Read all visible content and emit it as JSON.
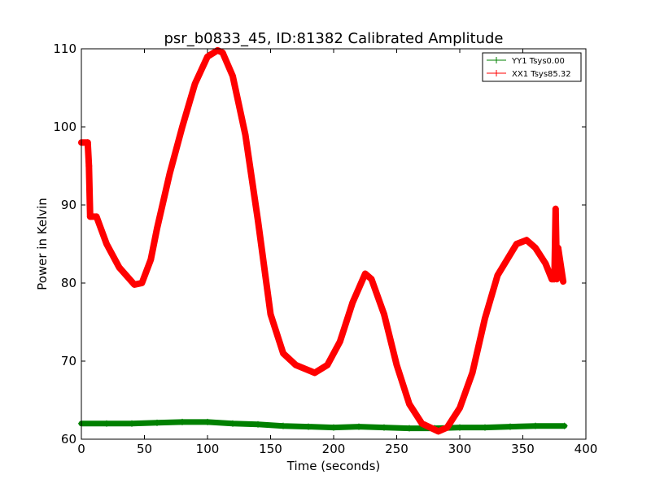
{
  "chart_data": {
    "type": "line",
    "title": "psr_b0833_45, ID:81382 Calibrated Amplitude",
    "xlabel": "Time (seconds)",
    "ylabel": "Power in Kelvin",
    "xlim": [
      0,
      400
    ],
    "ylim": [
      60,
      110
    ],
    "xticks": [
      0,
      50,
      100,
      150,
      200,
      250,
      300,
      350,
      400
    ],
    "yticks": [
      60,
      70,
      80,
      90,
      100,
      110
    ],
    "grid": false,
    "legend_position": "top-right",
    "series": [
      {
        "name": "YY1 Tsys0.00",
        "color": "#008000",
        "x": [
          0,
          20,
          40,
          60,
          80,
          100,
          120,
          140,
          160,
          180,
          200,
          220,
          240,
          260,
          280,
          300,
          320,
          340,
          360,
          383
        ],
        "y": [
          62.0,
          62.0,
          62.0,
          62.1,
          62.2,
          62.2,
          62.0,
          61.9,
          61.7,
          61.6,
          61.5,
          61.6,
          61.5,
          61.4,
          61.4,
          61.5,
          61.5,
          61.6,
          61.7,
          61.7
        ]
      },
      {
        "name": "XX1 Tsys85.32",
        "color": "#ff0000",
        "x": [
          0,
          5,
          6,
          7,
          12,
          20,
          30,
          42,
          48,
          55,
          60,
          70,
          80,
          90,
          100,
          108,
          112,
          120,
          130,
          140,
          150,
          160,
          170,
          185,
          195,
          205,
          215,
          225,
          230,
          240,
          250,
          260,
          270,
          283,
          290,
          300,
          310,
          320,
          330,
          345,
          353,
          360,
          368,
          373,
          375,
          376,
          377,
          378,
          382
        ],
        "y": [
          98.0,
          98.0,
          95.0,
          88.5,
          88.5,
          85.0,
          82.0,
          79.8,
          80.0,
          83.0,
          87.0,
          94.0,
          100.0,
          105.5,
          109.0,
          109.8,
          109.5,
          106.5,
          99.0,
          88.0,
          76.0,
          71.0,
          69.5,
          68.5,
          69.5,
          72.5,
          77.5,
          81.2,
          80.5,
          76.0,
          69.5,
          64.5,
          62.0,
          61.0,
          61.5,
          64.0,
          68.5,
          75.5,
          81.0,
          85.0,
          85.5,
          84.5,
          82.5,
          80.5,
          80.5,
          89.5,
          80.5,
          84.5,
          80.2
        ]
      }
    ]
  }
}
